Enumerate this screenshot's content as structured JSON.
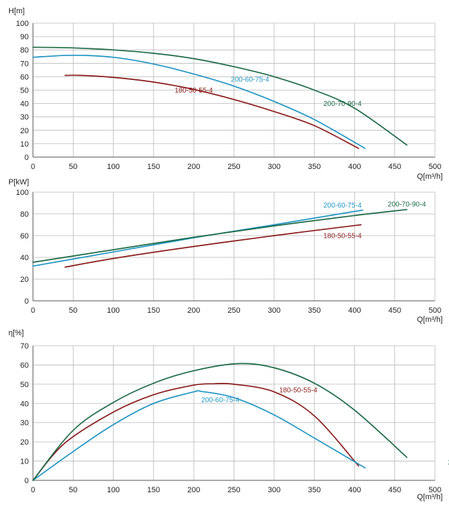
{
  "chart_data": [
    {
      "type": "line",
      "ylabel": "H[m]",
      "xlabel": "Q[m³/h]",
      "xlim": [
        0,
        500
      ],
      "ylim": [
        0,
        100
      ],
      "xticks": [
        0,
        50,
        100,
        150,
        200,
        250,
        300,
        350,
        400,
        450,
        500
      ],
      "yticks": [
        0,
        10,
        20,
        30,
        40,
        50,
        60,
        70,
        80,
        90,
        100
      ],
      "grid": true,
      "series": [
        {
          "name": "180-50-55-4",
          "color": "#8b1c1c",
          "x": [
            40,
            60,
            100,
            150,
            200,
            250,
            300,
            350,
            405
          ],
          "y": [
            61,
            61,
            59.5,
            56,
            50.5,
            43,
            34,
            23.5,
            6.5
          ],
          "label_at": [
            200,
            50
          ]
        },
        {
          "name": "200-60-75-4",
          "color": "#2196c4",
          "x": [
            0,
            50,
            100,
            150,
            200,
            250,
            300,
            350,
            413
          ],
          "y": [
            74.5,
            76,
            74.5,
            69.5,
            62,
            53,
            41.5,
            28,
            6.5
          ],
          "label_at": [
            270,
            58
          ]
        },
        {
          "name": "200-70-90-4",
          "color": "#1e6b48",
          "x": [
            0,
            50,
            100,
            150,
            200,
            250,
            300,
            350,
            400,
            465
          ],
          "y": [
            82,
            81.5,
            80,
            77.5,
            73.5,
            67.5,
            60,
            50,
            36.5,
            9
          ],
          "label_at": [
            385,
            40
          ]
        }
      ]
    },
    {
      "type": "line",
      "ylabel": "P[kW]",
      "xlabel": "Q[m³/h]",
      "xlim": [
        0,
        500
      ],
      "ylim": [
        0,
        100
      ],
      "xticks": [
        0,
        50,
        100,
        150,
        200,
        250,
        300,
        350,
        400,
        450,
        500
      ],
      "yticks": [
        0,
        20,
        40,
        60,
        80,
        100
      ],
      "grid": true,
      "series": [
        {
          "name": "180-50-55-4",
          "color": "#8b1c1c",
          "x": [
            40,
            100,
            200,
            300,
            408
          ],
          "y": [
            31,
            39,
            50,
            60,
            70
          ],
          "label_at": [
            385,
            60
          ]
        },
        {
          "name": "200-60-75-4",
          "color": "#2196c4",
          "x": [
            0,
            100,
            200,
            300,
            410
          ],
          "y": [
            32,
            45,
            58,
            70,
            83.5
          ],
          "label_at": [
            385,
            88
          ]
        },
        {
          "name": "200-70-90-4",
          "color": "#1e6b48",
          "x": [
            0,
            100,
            200,
            300,
            400,
            465
          ],
          "y": [
            35.5,
            47,
            58.5,
            69,
            78.5,
            84
          ],
          "label_at": [
            465,
            89
          ]
        }
      ]
    },
    {
      "type": "line",
      "ylabel": "η[%]",
      "xlabel": "Q[m³/h]",
      "xlim": [
        0,
        500
      ],
      "ylim": [
        0,
        70
      ],
      "xticks": [
        0,
        50,
        100,
        150,
        200,
        250,
        300,
        350,
        400,
        450,
        500
      ],
      "yticks": [
        0,
        10,
        20,
        30,
        40,
        50,
        60,
        70
      ],
      "grid": true,
      "series": [
        {
          "name": "180-50-55-4",
          "color": "#8b1c1c",
          "x": [
            0,
            40,
            100,
            150,
            200,
            225,
            250,
            300,
            350,
            405
          ],
          "y": [
            0,
            19.5,
            35.5,
            44.5,
            49.5,
            50.2,
            50,
            46,
            33.5,
            7.5
          ],
          "label_at": [
            330,
            47
          ]
        },
        {
          "name": "200-60-75-4",
          "color": "#2196c4",
          "x": [
            0,
            50,
            100,
            150,
            200,
            210,
            250,
            300,
            350,
            413
          ],
          "y": [
            0,
            15,
            29,
            40,
            46,
            46.2,
            43,
            34,
            22,
            6.5
          ],
          "label_at": [
            233,
            42
          ]
        },
        {
          "name": "200-70-90-4",
          "color": "#1e6b48",
          "x": [
            0,
            50,
            100,
            150,
            200,
            255,
            300,
            350,
            400,
            465
          ],
          "y": [
            0,
            26,
            40.5,
            50.5,
            57,
            60.7,
            58.5,
            50.5,
            36.5,
            12
          ],
          "label_at": [
            540,
            9.5
          ]
        }
      ]
    }
  ]
}
